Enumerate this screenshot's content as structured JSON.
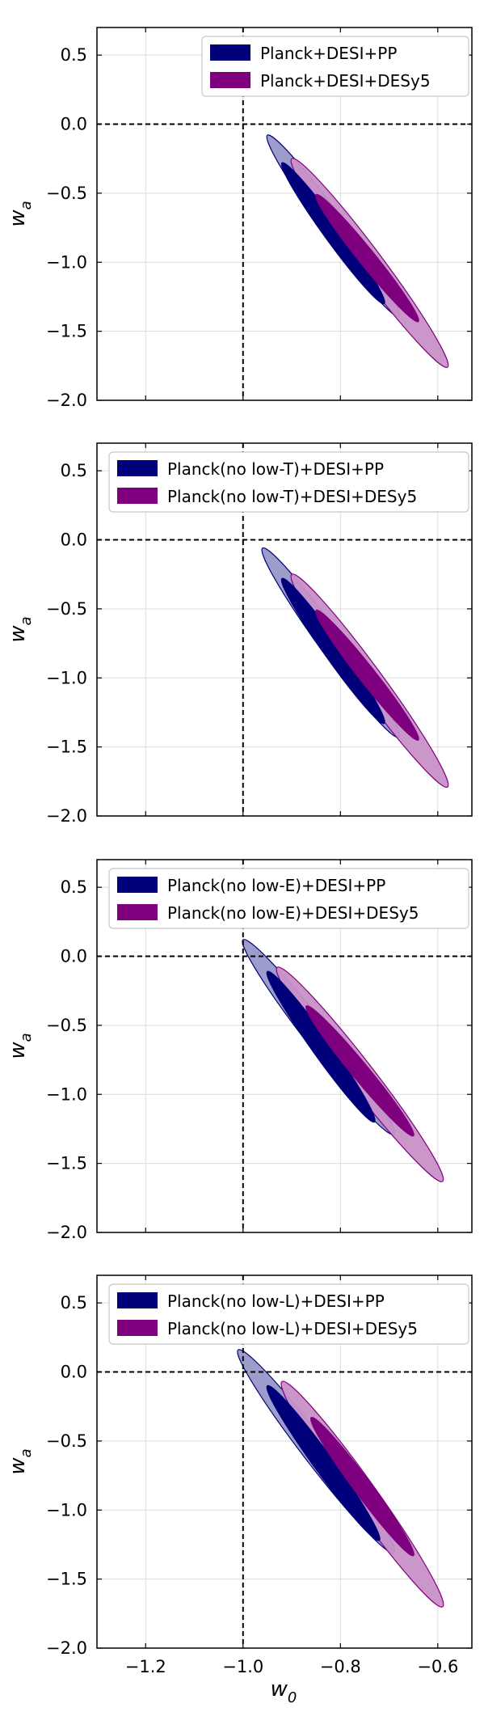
{
  "figure": {
    "xlabel": "w0",
    "colors": {
      "pp": "#00007a",
      "desy5": "#7f007f",
      "pp_outer": "#9898c9",
      "desy5_outer": "#c891c8"
    }
  },
  "chart_data": [
    {
      "type": "contour",
      "xlabel": "w0",
      "ylabel": "wa",
      "xlim": [
        -1.3,
        -0.53
      ],
      "ylim": [
        -2.0,
        0.7
      ],
      "xticks": [
        -1.2,
        -1.0,
        -0.8,
        -0.6
      ],
      "yticks": [
        0.5,
        0.0,
        -0.5,
        -1.0,
        -1.5,
        -2.0
      ],
      "ref_lines": {
        "w0": -1.0,
        "wa": 0.0
      },
      "grid": true,
      "legend_position": "upper right",
      "series": [
        {
          "name": "Planck+DESI+PP",
          "color": "#00007a",
          "outer": {
            "w0": [
              -0.95,
              -0.68
            ],
            "wa": [
              -0.08,
              -1.39
            ]
          },
          "inner": {
            "w0": [
              -0.92,
              -0.71
            ],
            "wa": [
              -0.28,
              -1.3
            ]
          }
        },
        {
          "name": "Planck+DESI+DESy5",
          "color": "#7f007f",
          "outer": {
            "w0": [
              -0.9,
              -0.58
            ],
            "wa": [
              -0.25,
              -1.76
            ]
          },
          "inner": {
            "w0": [
              -0.85,
              -0.64
            ],
            "wa": [
              -0.51,
              -1.43
            ]
          }
        }
      ]
    },
    {
      "type": "contour",
      "xlabel": "w0",
      "ylabel": "wa",
      "xlim": [
        -1.3,
        -0.53
      ],
      "ylim": [
        -2.0,
        0.7
      ],
      "xticks": [
        -1.2,
        -1.0,
        -0.8,
        -0.6
      ],
      "yticks": [
        0.5,
        0.0,
        -0.5,
        -1.0,
        -1.5,
        -2.0
      ],
      "ref_lines": {
        "w0": -1.0,
        "wa": 0.0
      },
      "grid": true,
      "legend_position": "upper center",
      "series": [
        {
          "name": "Planck(no low-T)+DESI+PP",
          "color": "#00007a",
          "outer": {
            "w0": [
              -0.96,
              -0.68
            ],
            "wa": [
              -0.06,
              -1.43
            ]
          },
          "inner": {
            "w0": [
              -0.92,
              -0.71
            ],
            "wa": [
              -0.28,
              -1.33
            ]
          }
        },
        {
          "name": "Planck(no low-T)+DESI+DESy5",
          "color": "#7f007f",
          "outer": {
            "w0": [
              -0.9,
              -0.58
            ],
            "wa": [
              -0.25,
              -1.79
            ]
          },
          "inner": {
            "w0": [
              -0.85,
              -0.64
            ],
            "wa": [
              -0.51,
              -1.45
            ]
          }
        }
      ]
    },
    {
      "type": "contour",
      "xlabel": "w0",
      "ylabel": "wa",
      "xlim": [
        -1.3,
        -0.53
      ],
      "ylim": [
        -2.0,
        0.7
      ],
      "xticks": [
        -1.2,
        -1.0,
        -0.8,
        -0.6
      ],
      "yticks": [
        0.5,
        0.0,
        -0.5,
        -1.0,
        -1.5,
        -2.0
      ],
      "ref_lines": {
        "w0": -1.0,
        "wa": 0.0
      },
      "grid": true,
      "legend_position": "upper center",
      "series": [
        {
          "name": "Planck(no low-E)+DESI+PP",
          "color": "#00007a",
          "outer": {
            "w0": [
              -1.0,
              -0.69
            ],
            "wa": [
              0.12,
              -1.29
            ]
          },
          "inner": {
            "w0": [
              -0.95,
              -0.73
            ],
            "wa": [
              -0.11,
              -1.2
            ]
          }
        },
        {
          "name": "Planck(no low-E)+DESI+DESy5",
          "color": "#7f007f",
          "outer": {
            "w0": [
              -0.93,
              -0.59
            ],
            "wa": [
              -0.08,
              -1.63
            ]
          },
          "inner": {
            "w0": [
              -0.87,
              -0.65
            ],
            "wa": [
              -0.36,
              -1.3
            ]
          }
        }
      ]
    },
    {
      "type": "contour",
      "xlabel": "w0",
      "ylabel": "wa",
      "xlim": [
        -1.3,
        -0.53
      ],
      "ylim": [
        -2.0,
        0.7
      ],
      "xticks": [
        -1.2,
        -1.0,
        -0.8,
        -0.6
      ],
      "yticks": [
        0.5,
        0.0,
        -0.5,
        -1.0,
        -1.5,
        -2.0
      ],
      "ref_lines": {
        "w0": -1.0,
        "wa": 0.0
      },
      "grid": true,
      "legend_position": "upper center",
      "series": [
        {
          "name": "Planck(no low-L)+DESI+PP",
          "color": "#00007a",
          "outer": {
            "w0": [
              -1.01,
              -0.69
            ],
            "wa": [
              0.16,
              -1.31
            ]
          },
          "inner": {
            "w0": [
              -0.95,
              -0.72
            ],
            "wa": [
              -0.1,
              -1.22
            ]
          }
        },
        {
          "name": "Planck(no low-L)+DESI+DESy5",
          "color": "#7f007f",
          "outer": {
            "w0": [
              -0.92,
              -0.59
            ],
            "wa": [
              -0.07,
              -1.7
            ]
          },
          "inner": {
            "w0": [
              -0.86,
              -0.65
            ],
            "wa": [
              -0.33,
              -1.33
            ]
          }
        }
      ]
    }
  ]
}
